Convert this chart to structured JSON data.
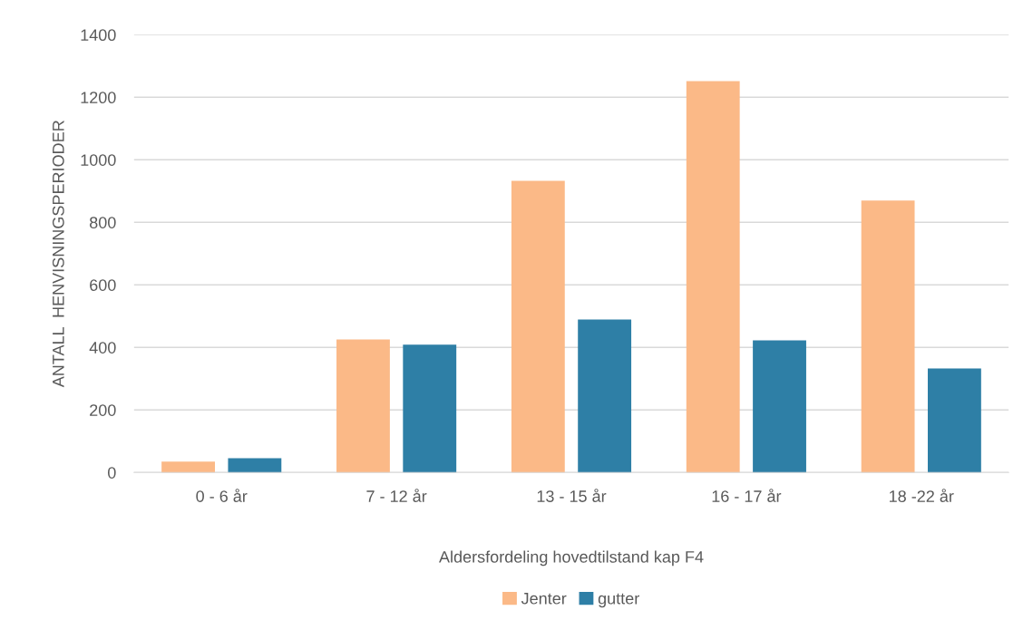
{
  "chart_data": {
    "type": "bar",
    "xlabel": "Aldersfordeling hovedtilstand kap F4",
    "ylabel": "ANTALL  HENVISNINGSPERIODER",
    "categories": [
      "0 - 6 år",
      "7 - 12 år",
      "13 - 15 år",
      "16 - 17 år",
      "18 -22 år"
    ],
    "series": [
      {
        "name": "Jenter",
        "color": "#fbb987",
        "values": [
          32,
          423,
          930,
          1249,
          867
        ]
      },
      {
        "name": "gutter",
        "color": "#2e7fa6",
        "values": [
          43,
          406,
          487,
          420,
          330
        ]
      }
    ],
    "ylim": [
      0,
      1400
    ],
    "yticks": [
      0,
      200,
      400,
      600,
      800,
      1000,
      1200,
      1400
    ],
    "grid": "y",
    "legend": "bottom"
  }
}
